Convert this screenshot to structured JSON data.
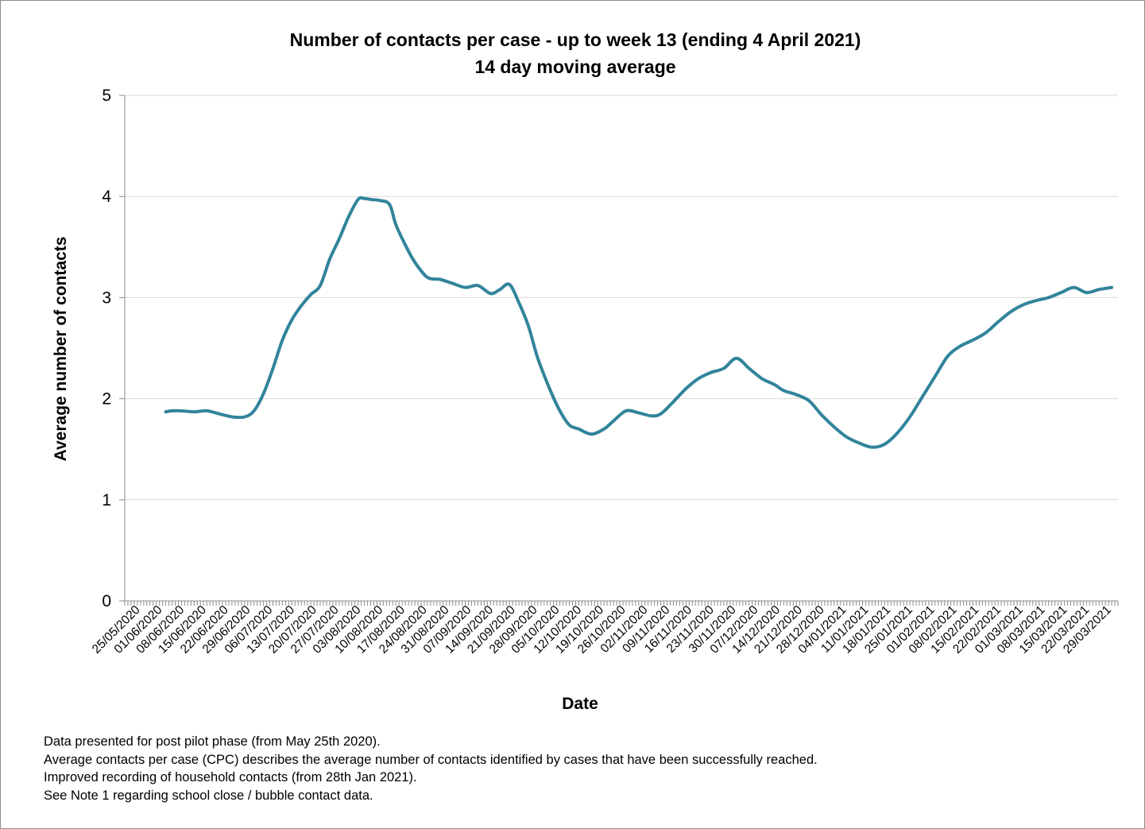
{
  "chart_data": {
    "type": "line",
    "title": "Number of contacts per case - up to week 13 (ending 4 April 2021)",
    "subtitle": "14 day moving average",
    "xlabel": "Date",
    "ylabel": "Average number of contacts",
    "ylim": [
      0,
      5
    ],
    "yticks": [
      "0",
      "1",
      "2",
      "3",
      "4",
      "5"
    ],
    "grid": true,
    "legend": "none",
    "line_color": "#31849b",
    "x_tick_labels": [
      "25/05/2020",
      "01/06/2020",
      "08/06/2020",
      "15/06/2020",
      "22/06/2020",
      "29/06/2020",
      "06/07/2020",
      "13/07/2020",
      "20/07/2020",
      "27/07/2020",
      "03/08/2020",
      "10/08/2020",
      "17/08/2020",
      "24/08/2020",
      "31/08/2020",
      "07/09/2020",
      "14/09/2020",
      "21/09/2020",
      "28/09/2020",
      "05/10/2020",
      "12/10/2020",
      "19/10/2020",
      "26/10/2020",
      "02/11/2020",
      "09/11/2020",
      "16/11/2020",
      "23/11/2020",
      "30/11/2020",
      "07/12/2020",
      "14/12/2020",
      "21/12/2020",
      "28/12/2020",
      "04/01/2021",
      "11/01/2021",
      "18/01/2021",
      "25/01/2021",
      "01/02/2021",
      "08/02/2021",
      "15/02/2021",
      "22/02/2021",
      "01/03/2021",
      "08/03/2021",
      "15/03/2021",
      "22/03/2021",
      "29/03/2021"
    ],
    "series": [
      {
        "x": [
          "2020-06-07",
          "2020-06-09",
          "2020-06-12",
          "2020-06-16",
          "2020-06-20",
          "2020-06-24",
          "2020-06-28",
          "2020-07-02",
          "2020-07-05",
          "2020-07-08",
          "2020-07-11",
          "2020-07-14",
          "2020-07-17",
          "2020-07-20",
          "2020-07-23",
          "2020-07-26",
          "2020-07-29",
          "2020-08-01",
          "2020-08-04",
          "2020-08-07",
          "2020-08-09",
          "2020-08-11",
          "2020-08-14",
          "2020-08-17",
          "2020-08-19",
          "2020-08-22",
          "2020-08-25",
          "2020-08-29",
          "2020-09-02",
          "2020-09-06",
          "2020-09-10",
          "2020-09-14",
          "2020-09-18",
          "2020-09-21",
          "2020-09-24",
          "2020-09-27",
          "2020-09-30",
          "2020-10-03",
          "2020-10-07",
          "2020-10-10",
          "2020-10-13",
          "2020-10-16",
          "2020-10-20",
          "2020-10-24",
          "2020-10-27",
          "2020-10-31",
          "2020-11-04",
          "2020-11-08",
          "2020-11-11",
          "2020-11-15",
          "2020-11-19",
          "2020-11-23",
          "2020-11-27",
          "2020-12-01",
          "2020-12-05",
          "2020-12-09",
          "2020-12-13",
          "2020-12-17",
          "2020-12-20",
          "2020-12-24",
          "2020-12-28",
          "2021-01-01",
          "2021-01-05",
          "2021-01-09",
          "2021-01-13",
          "2021-01-17",
          "2021-01-21",
          "2021-01-25",
          "2021-01-29",
          "2021-02-02",
          "2021-02-06",
          "2021-02-10",
          "2021-02-14",
          "2021-02-18",
          "2021-02-22",
          "2021-02-26",
          "2021-03-02",
          "2021-03-06",
          "2021-03-10",
          "2021-03-14",
          "2021-03-18",
          "2021-03-22",
          "2021-03-26",
          "2021-03-30",
          "2021-04-03"
        ],
        "y": [
          1.87,
          1.88,
          1.88,
          1.87,
          1.88,
          1.85,
          1.82,
          1.82,
          1.88,
          2.05,
          2.3,
          2.58,
          2.78,
          2.92,
          3.03,
          3.12,
          3.38,
          3.58,
          3.8,
          3.97,
          3.98,
          3.97,
          3.96,
          3.92,
          3.72,
          3.52,
          3.35,
          3.2,
          3.18,
          3.14,
          3.1,
          3.12,
          3.04,
          3.08,
          3.13,
          2.95,
          2.72,
          2.4,
          2.08,
          1.88,
          1.74,
          1.7,
          1.65,
          1.7,
          1.78,
          1.88,
          1.86,
          1.83,
          1.85,
          1.97,
          2.1,
          2.2,
          2.26,
          2.3,
          2.4,
          2.3,
          2.2,
          2.14,
          2.08,
          2.04,
          1.98,
          1.84,
          1.72,
          1.62,
          1.56,
          1.52,
          1.55,
          1.66,
          1.82,
          2.02,
          2.22,
          2.42,
          2.52,
          2.58,
          2.65,
          2.76,
          2.86,
          2.93,
          2.97,
          3.0,
          3.05,
          3.1,
          3.05,
          3.08,
          3.1
        ]
      }
    ]
  },
  "notes": [
    "Data presented  for post pilot phase (from May 25th 2020).",
    "Average contacts per case (CPC) describes the average number of contacts identified by cases that have been successfully reached.",
    "Improved recording of household contacts (from 28th Jan 2021).",
    "See Note 1 regarding school close / bubble contact data."
  ]
}
